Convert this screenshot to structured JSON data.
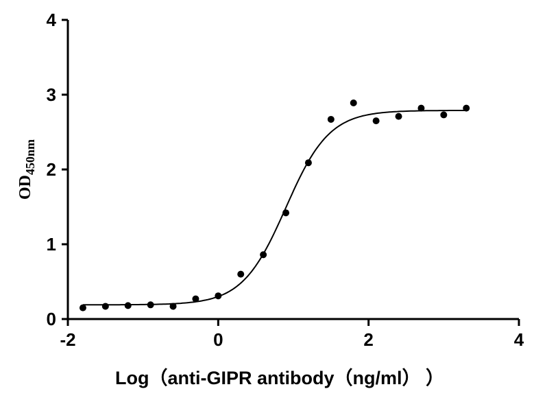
{
  "chart_data": {
    "type": "scatter",
    "xlabel": "Log（anti-GIPR antibody（ng/ml） ）",
    "ylabel": "OD",
    "ylabel_sub": "450nm",
    "xlim": [
      -2,
      4
    ],
    "ylim": [
      0,
      4
    ],
    "xticks": [
      "-2",
      "0",
      "2",
      "4"
    ],
    "yticks": [
      "0",
      "1",
      "2",
      "3",
      "4"
    ],
    "grid": false,
    "points": {
      "x": [
        -1.8,
        -1.5,
        -1.2,
        -0.9,
        -0.6,
        -0.3,
        0.0,
        0.3,
        0.6,
        0.9,
        1.2,
        1.5,
        1.8,
        2.1,
        2.4,
        2.7,
        3.0,
        3.3
      ],
      "y": [
        0.15,
        0.17,
        0.18,
        0.19,
        0.17,
        0.27,
        0.31,
        0.6,
        0.86,
        1.42,
        2.09,
        2.67,
        2.89,
        2.65,
        2.71,
        2.82,
        2.73,
        2.82
      ]
    },
    "fit": {
      "model": "4PL",
      "bottom": 0.19,
      "top": 2.79,
      "logEC50": 0.9,
      "hill": 1.5,
      "x_range": [
        -1.8,
        3.3
      ]
    },
    "colors": {
      "points": "#000000",
      "line": "#000000",
      "axes": "#000000"
    }
  }
}
